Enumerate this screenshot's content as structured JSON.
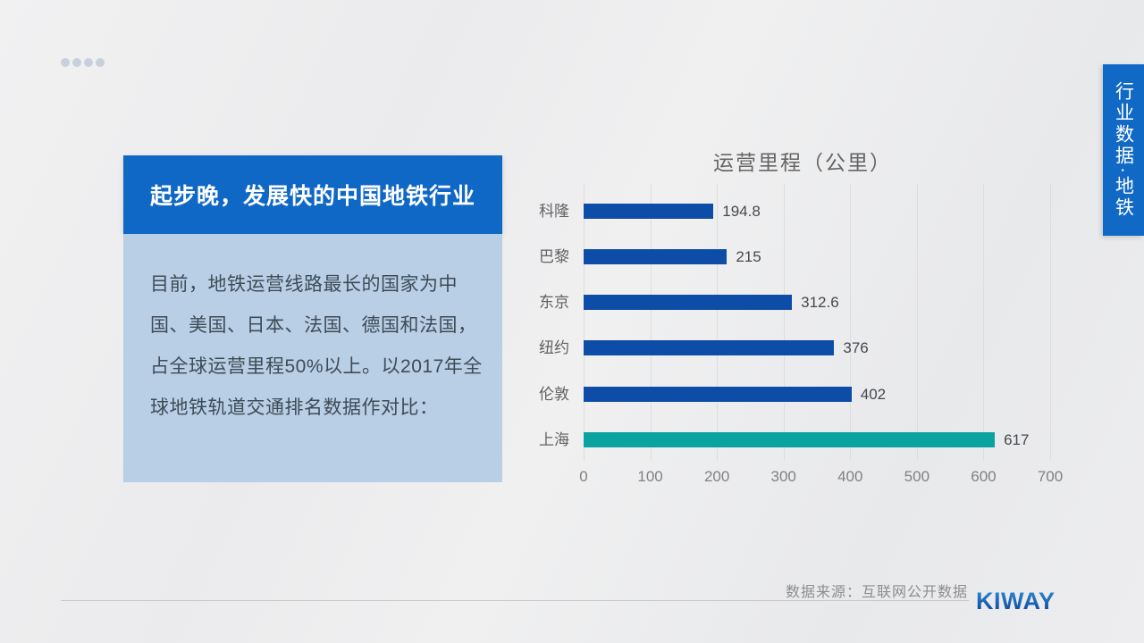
{
  "slide": {
    "dot_count": 4,
    "side_tab": {
      "label": "行业数据·地铁"
    },
    "title_box": {
      "title": "起步晚，发展快的中国地铁行业"
    },
    "body_box": {
      "text": "目前，地铁运营线路最长的国家为中国、美国、日本、法国、德国和法国，占全球运营里程50%以上。以2017年全球地铁轨道交通排名数据作对比："
    },
    "footer": {
      "source": "数据来源：互联网公开数据",
      "logo_text": "KIWAY"
    }
  },
  "chart_data": {
    "type": "bar",
    "orientation": "horizontal",
    "title": "运营里程（公里）",
    "categories": [
      "科隆",
      "巴黎",
      "东京",
      "纽约",
      "伦敦",
      "上海"
    ],
    "values": [
      194.8,
      215,
      312.6,
      376,
      402,
      617
    ],
    "value_labels": [
      "194.8",
      "215",
      "312.6",
      "376",
      "402",
      "617"
    ],
    "xlim": [
      0,
      700
    ],
    "x_ticks": [
      0,
      100,
      200,
      300,
      400,
      500,
      600,
      700
    ],
    "grid": true,
    "legend": "none",
    "bar_color": "#0d4da8",
    "highlight_color": "#0aa3a0",
    "highlight_index": 5
  }
}
